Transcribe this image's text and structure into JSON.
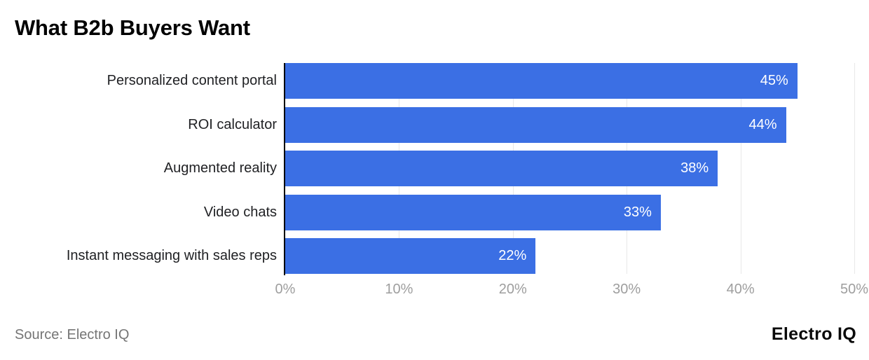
{
  "title": "What B2b Buyers Want",
  "source_note": "Source: Electro IQ",
  "brand": "Electro IQ",
  "colors": {
    "bar": "#3b6fe4",
    "gridline": "#e8e8e8",
    "axis_line": "#000000",
    "axis_label": "#9e9e9e",
    "category_label": "#202124",
    "value_label": "#ffffff",
    "title": "#000000",
    "source": "#757575"
  },
  "chart_data": {
    "type": "bar",
    "orientation": "horizontal",
    "title": "What B2b Buyers Want",
    "categories": [
      "Personalized content portal",
      "ROI calculator",
      "Augmented reality",
      "Video chats",
      "Instant messaging with sales reps"
    ],
    "values": [
      45,
      44,
      38,
      33,
      22
    ],
    "value_suffix": "%",
    "value_labels_position": "inside-end",
    "xlabel": "",
    "ylabel": "",
    "xlim": [
      0,
      50
    ],
    "x_ticks": [
      "0%",
      "10%",
      "20%",
      "30%",
      "40%",
      "50%"
    ],
    "grid": true,
    "legend": false
  }
}
